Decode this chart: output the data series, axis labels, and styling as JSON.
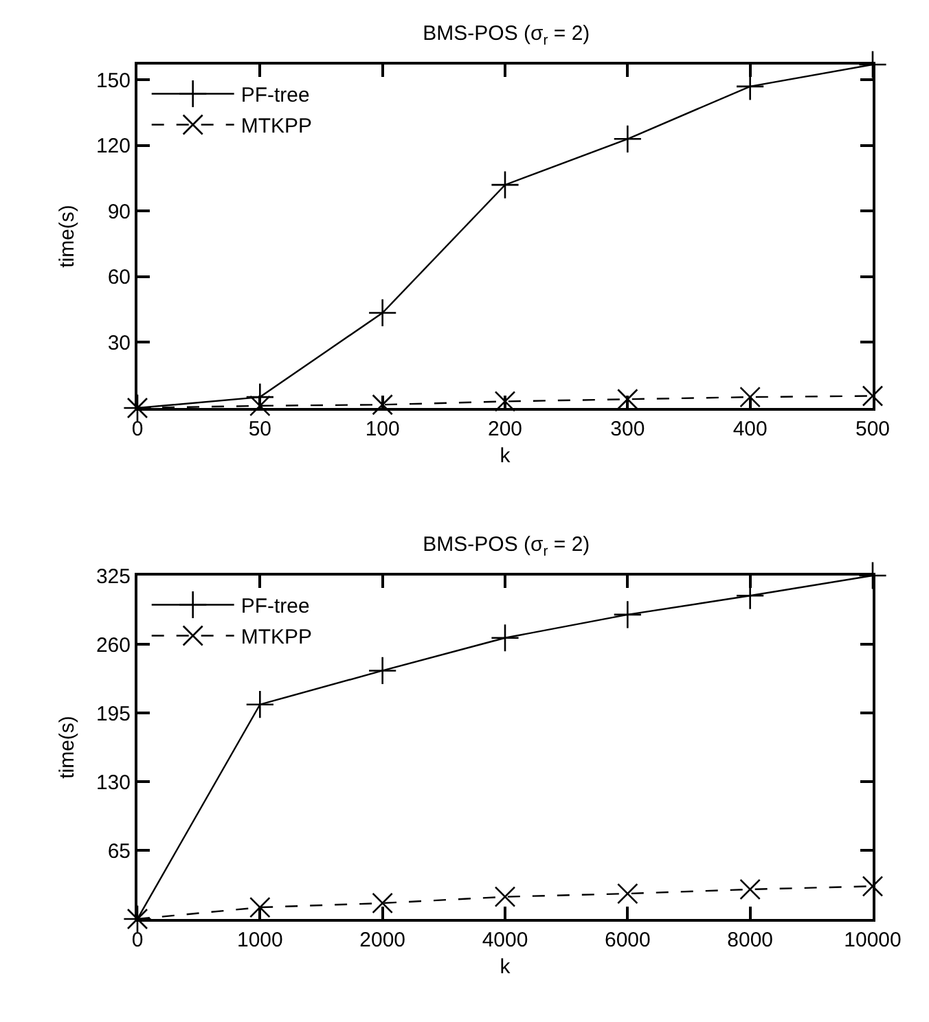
{
  "chart_data": [
    {
      "type": "line",
      "title": "BMS-POS (σ$_{r}$ = 2)",
      "xlabel": "k",
      "ylabel": "time(s)",
      "categories": [
        "0",
        "50",
        "100",
        "200",
        "300",
        "400",
        "500"
      ],
      "ylim": [
        0,
        157
      ],
      "yticks": [
        30,
        60,
        90,
        120,
        150
      ],
      "grid": false,
      "legend": "top left",
      "series": [
        {
          "name": "PF-tree",
          "color": "#000000",
          "marker": "cross",
          "line_style": "solid",
          "values": [
            0,
            5,
            43.5,
            102,
            123,
            147,
            157
          ]
        },
        {
          "name": "MTKPP",
          "color": "#000000",
          "marker": "x",
          "line_style": "dashed",
          "values": [
            0,
            1,
            1.5,
            3,
            4,
            5,
            5.5
          ]
        }
      ]
    },
    {
      "type": "line",
      "title": "BMS-POS (σ$_{r}$ = 2)",
      "xlabel": "k",
      "ylabel": "time(s)",
      "categories": [
        "0",
        "1000",
        "2000",
        "4000",
        "6000",
        "8000",
        "10000"
      ],
      "ylim": [
        0,
        325
      ],
      "yticks": [
        65,
        130,
        195,
        260,
        325
      ],
      "grid": false,
      "legend": "top left",
      "series": [
        {
          "name": "PF-tree",
          "color": "#000000",
          "marker": "cross",
          "line_style": "solid",
          "values": [
            0,
            203,
            235,
            266,
            288,
            306,
            325
          ]
        },
        {
          "name": "MTKPP",
          "color": "#000000",
          "marker": "x",
          "line_style": "dashed",
          "values": [
            0,
            11,
            15,
            21,
            24,
            28,
            31
          ]
        }
      ]
    }
  ]
}
